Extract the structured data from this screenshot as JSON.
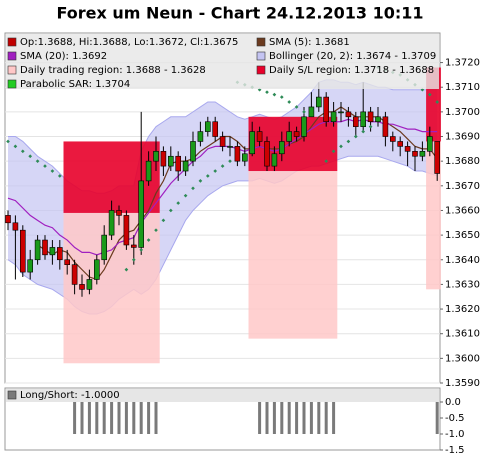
{
  "chart_data": {
    "type": "candlestick",
    "title": "Forex um Neun - Chart 24.12.2013 10:11",
    "grid": true,
    "ylim": [
      1.359,
      1.3732
    ],
    "yticks": [
      {
        "value": 1.359,
        "label": "1.3590"
      },
      {
        "value": 1.36,
        "label": "1.3600"
      },
      {
        "value": 1.361,
        "label": "1.3610"
      },
      {
        "value": 1.362,
        "label": "1.3620"
      },
      {
        "value": 1.363,
        "label": "1.3630"
      },
      {
        "value": 1.364,
        "label": "1.3640"
      },
      {
        "value": 1.365,
        "label": "1.3650"
      },
      {
        "value": 1.366,
        "label": "1.3660"
      },
      {
        "value": 1.367,
        "label": "1.3670"
      },
      {
        "value": 1.368,
        "label": "1.3680"
      },
      {
        "value": 1.369,
        "label": "1.3690"
      },
      {
        "value": 1.37,
        "label": "1.3700"
      },
      {
        "value": 1.371,
        "label": "1.3710"
      },
      {
        "value": 1.372,
        "label": "1.3720"
      }
    ],
    "candles": {
      "name": "Op:1.3688, Hi:1.3688, Lo:1.3672, Cl:1.3675",
      "color": "#c00000",
      "up_color": "#1a9a1a",
      "down_color": "#cc0000",
      "open": [
        1.3658,
        1.3655,
        1.3652,
        1.3635,
        1.364,
        1.3648,
        1.3642,
        1.3645,
        1.364,
        1.3638,
        1.363,
        1.3628,
        1.3632,
        1.364,
        1.365,
        1.366,
        1.3658,
        1.3646,
        1.3645,
        1.3672,
        1.368,
        1.3684,
        1.3678,
        1.3682,
        1.3676,
        1.368,
        1.3688,
        1.3692,
        1.3696,
        1.369,
        1.3686,
        1.3686,
        1.368,
        1.3683,
        1.3692,
        1.3688,
        1.3678,
        1.3683,
        1.3688,
        1.3692,
        1.369,
        1.3698,
        1.3702,
        1.3706,
        1.3696,
        1.37,
        1.37,
        1.3698,
        1.3694,
        1.37,
        1.3696,
        1.3698,
        1.369,
        1.3688,
        1.3686,
        1.3684,
        1.3682,
        1.3684,
        1.3688
      ],
      "high": [
        1.366,
        1.3658,
        1.3654,
        1.3644,
        1.365,
        1.365,
        1.3648,
        1.3648,
        1.3644,
        1.364,
        1.3634,
        1.3636,
        1.3642,
        1.3654,
        1.3664,
        1.3662,
        1.366,
        1.365,
        1.37,
        1.3684,
        1.369,
        1.3686,
        1.3686,
        1.3684,
        1.3682,
        1.3692,
        1.3696,
        1.3698,
        1.3698,
        1.3692,
        1.369,
        1.3688,
        1.3686,
        1.3696,
        1.3694,
        1.369,
        1.3686,
        1.3692,
        1.3696,
        1.3694,
        1.3702,
        1.3708,
        1.3712,
        1.3708,
        1.3704,
        1.3704,
        1.3702,
        1.37,
        1.3712,
        1.3702,
        1.3702,
        1.37,
        1.3692,
        1.369,
        1.3688,
        1.3686,
        1.3688,
        1.3694,
        1.3688
      ],
      "low": [
        1.3652,
        1.3632,
        1.3633,
        1.3632,
        1.3638,
        1.364,
        1.3638,
        1.3636,
        1.3634,
        1.3626,
        1.3625,
        1.3626,
        1.363,
        1.3638,
        1.3648,
        1.3654,
        1.3644,
        1.3638,
        1.3642,
        1.367,
        1.3676,
        1.3674,
        1.3676,
        1.3672,
        1.3674,
        1.3678,
        1.3686,
        1.369,
        1.3688,
        1.3684,
        1.3682,
        1.3678,
        1.3678,
        1.3682,
        1.3686,
        1.3676,
        1.3676,
        1.368,
        1.3686,
        1.3688,
        1.3688,
        1.3698,
        1.37,
        1.3694,
        1.3694,
        1.3696,
        1.3694,
        1.369,
        1.3692,
        1.3692,
        1.3694,
        1.3686,
        1.3684,
        1.3682,
        1.3678,
        1.3676,
        1.368,
        1.3682,
        1.3672
      ],
      "close": [
        1.3655,
        1.3652,
        1.3635,
        1.364,
        1.3648,
        1.3642,
        1.3645,
        1.364,
        1.3638,
        1.363,
        1.3628,
        1.3632,
        1.364,
        1.365,
        1.366,
        1.3658,
        1.3646,
        1.3645,
        1.3672,
        1.368,
        1.3684,
        1.3678,
        1.3682,
        1.3676,
        1.368,
        1.3688,
        1.3692,
        1.3696,
        1.369,
        1.3686,
        1.3686,
        1.368,
        1.3683,
        1.3692,
        1.3688,
        1.3678,
        1.3683,
        1.3688,
        1.3692,
        1.369,
        1.3698,
        1.3702,
        1.3706,
        1.3696,
        1.37,
        1.37,
        1.3698,
        1.3694,
        1.37,
        1.3696,
        1.3698,
        1.369,
        1.3688,
        1.3686,
        1.3684,
        1.3682,
        1.3684,
        1.369,
        1.3675
      ]
    },
    "bollinger": {
      "name": "Bollinger (20, 2): 1.3674 - 1.3709",
      "color": "#c4c4f2",
      "line_color": "#a8a8ee",
      "upper": [
        1.369,
        1.369,
        1.3688,
        1.3685,
        1.3682,
        1.368,
        1.3678,
        1.3675,
        1.3672,
        1.367,
        1.3668,
        1.3668,
        1.3667,
        1.3667,
        1.3668,
        1.367,
        1.367,
        1.367,
        1.3684,
        1.369,
        1.3694,
        1.3696,
        1.3698,
        1.3698,
        1.3698,
        1.37,
        1.3702,
        1.3704,
        1.3704,
        1.3702,
        1.37,
        1.3698,
        1.3697,
        1.3698,
        1.3699,
        1.3698,
        1.3697,
        1.3698,
        1.37,
        1.3702,
        1.3705,
        1.3708,
        1.3712,
        1.3713,
        1.3713,
        1.3712,
        1.3712,
        1.3711,
        1.3712,
        1.3711,
        1.371,
        1.371,
        1.3709,
        1.3709,
        1.3709,
        1.3709,
        1.3709,
        1.3709,
        1.3709
      ],
      "lower": [
        1.364,
        1.3638,
        1.3634,
        1.3632,
        1.363,
        1.3629,
        1.3628,
        1.3626,
        1.3624,
        1.3621,
        1.3619,
        1.3618,
        1.3618,
        1.3619,
        1.3621,
        1.3624,
        1.3626,
        1.3628,
        1.3626,
        1.3628,
        1.3632,
        1.3638,
        1.3644,
        1.365,
        1.3656,
        1.366,
        1.3663,
        1.3666,
        1.3668,
        1.367,
        1.3671,
        1.3672,
        1.3672,
        1.3672,
        1.3673,
        1.3672,
        1.3671,
        1.3672,
        1.3674,
        1.3676,
        1.3677,
        1.3678,
        1.3678,
        1.3679,
        1.368,
        1.3681,
        1.3682,
        1.3682,
        1.3682,
        1.3682,
        1.3682,
        1.3681,
        1.368,
        1.3679,
        1.3678,
        1.3676,
        1.3676,
        1.3675,
        1.3674
      ]
    },
    "series": [
      {
        "name": "SMA (5): 1.3681",
        "color": "#6b3a1f",
        "style": "line",
        "values": [
          null,
          null,
          null,
          null,
          1.3646,
          1.3644,
          1.3642,
          1.3644,
          1.3643,
          1.3639,
          1.3636,
          1.3633,
          1.3632,
          1.3636,
          1.3642,
          1.3648,
          1.3651,
          1.3652,
          1.3656,
          1.366,
          1.3667,
          1.3672,
          1.3679,
          1.368,
          1.368,
          1.3681,
          1.3684,
          1.3686,
          1.3688,
          1.369,
          1.369,
          1.3688,
          1.3685,
          1.3685,
          1.3686,
          1.3685,
          1.3685,
          1.3685,
          1.3687,
          1.3688,
          1.369,
          1.3694,
          1.3698,
          1.37,
          1.37,
          1.3702,
          1.37,
          1.3698,
          1.3698,
          1.3698,
          1.3698,
          1.3696,
          1.3694,
          1.3692,
          1.3689,
          1.3686,
          1.3685,
          1.3685,
          1.3681
        ]
      },
      {
        "name": "SMA (20): 1.3692",
        "color": "#a020c0",
        "style": "line",
        "values": [
          1.3665,
          1.3664,
          1.3661,
          1.3658,
          1.3656,
          1.3654,
          1.3653,
          1.365,
          1.3648,
          1.3645,
          1.3643,
          1.3643,
          1.3642,
          1.3643,
          1.3644,
          1.3647,
          1.3648,
          1.3649,
          1.3655,
          1.3659,
          1.3663,
          1.3667,
          1.3671,
          1.3674,
          1.3677,
          1.368,
          1.3682,
          1.3685,
          1.3686,
          1.3686,
          1.3686,
          1.3685,
          1.3684,
          1.3685,
          1.3686,
          1.3685,
          1.3684,
          1.3685,
          1.3687,
          1.3689,
          1.3691,
          1.3693,
          1.3695,
          1.3696,
          1.3696,
          1.3696,
          1.3697,
          1.3696,
          1.3697,
          1.3696,
          1.3696,
          1.3695,
          1.3695,
          1.3694,
          1.3693,
          1.3693,
          1.3692,
          1.3692,
          1.3692
        ]
      },
      {
        "name": "Parabolic SAR: 1.3704",
        "color": "#2e8b57",
        "style": "dots",
        "values": [
          1.3688,
          1.3686,
          1.3684,
          1.3682,
          1.368,
          1.3678,
          1.3676,
          1.3674,
          null,
          null,
          null,
          null,
          null,
          null,
          null,
          null,
          1.3636,
          1.364,
          1.3644,
          1.3648,
          1.3652,
          1.3656,
          1.366,
          1.3663,
          1.3666,
          1.3669,
          1.3672,
          1.3674,
          1.3676,
          1.3678,
          1.368,
          1.3712,
          1.3711,
          1.371,
          1.3709,
          1.3708,
          1.3707,
          1.3706,
          1.3704,
          1.3702,
          1.37,
          null,
          null,
          1.368,
          1.3684,
          1.3686,
          1.3688,
          1.369,
          1.3692,
          1.3694,
          1.3718,
          1.3717,
          1.3716,
          1.3715,
          1.3713,
          1.3711,
          1.3709,
          1.3707,
          1.3704
        ]
      }
    ],
    "trading_region": {
      "name": "Daily trading region: 1.3688 - 1.3628",
      "color": "#ffc8c8",
      "start": [
        8,
        33,
        57
      ],
      "end": [
        20,
        44,
        58
      ],
      "low": [
        1.3598,
        1.3608,
        1.3628
      ],
      "high": [
        1.3659,
        1.3676,
        1.3688
      ]
    },
    "sl_region": {
      "name": "Daily S/L region: 1.3718 - 1.3688",
      "color": "#e8002a",
      "start": [
        8,
        33,
        57
      ],
      "end": [
        20,
        44,
        58
      ],
      "low": [
        1.3659,
        1.3676,
        1.3688
      ],
      "high": [
        1.3688,
        1.3698,
        1.3718
      ]
    },
    "long_short": {
      "name": "Long/Short: -1.0000",
      "color": "#7a7a7a",
      "ylim": [
        -1.5,
        0
      ],
      "yticks": [
        {
          "value": 0,
          "label": "0.0"
        },
        -0.5,
        {
          "value": -1,
          "label": "-1.0"
        },
        -1.5
      ],
      "values": [
        0,
        0,
        0,
        0,
        0,
        0,
        0,
        0,
        0,
        -1,
        -1,
        -1,
        -1,
        -1,
        -1,
        -1,
        -1,
        -1,
        -1,
        -1,
        -1,
        0,
        0,
        0,
        0,
        0,
        0,
        0,
        0,
        0,
        0,
        0,
        0,
        0,
        -1,
        -1,
        -1,
        -1,
        -1,
        -1,
        -1,
        -1,
        -1,
        -1,
        -1,
        0,
        0,
        0,
        0,
        0,
        0,
        0,
        0,
        0,
        0,
        0,
        0,
        0,
        -1
      ]
    }
  }
}
